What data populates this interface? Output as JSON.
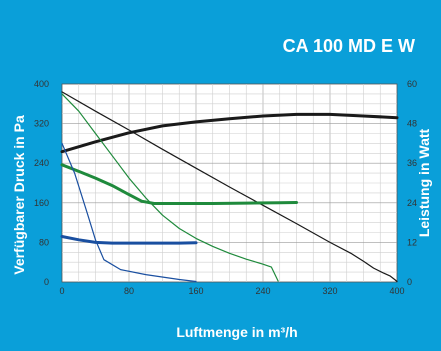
{
  "chart_data": {
    "type": "line",
    "title": "CA 100 MD E W",
    "xlabel": "Luftmenge in m³/h",
    "ylabel": "Verfügbarer Druck in Pa",
    "y2label": "Leistung in Watt",
    "xlim": [
      0,
      400
    ],
    "ylim": [
      0,
      400
    ],
    "y2lim": [
      0,
      60
    ],
    "xticks": [
      "0",
      "80",
      "160",
      "240",
      "320",
      "400"
    ],
    "yticks": [
      "0",
      "80",
      "160",
      "240",
      "320",
      "400"
    ],
    "y2ticks": [
      "0",
      "12",
      "24",
      "36",
      "48",
      "60"
    ],
    "grid": true,
    "series": [
      {
        "color": "#1a1a1a",
        "width": 1.2,
        "axis": "left",
        "points": [
          [
            0,
            384
          ],
          [
            40,
            345
          ],
          [
            80,
            307
          ],
          [
            120,
            268
          ],
          [
            160,
            230
          ],
          [
            200,
            192
          ],
          [
            240,
            155
          ],
          [
            280,
            118
          ],
          [
            320,
            80
          ],
          [
            345,
            58
          ],
          [
            360,
            42
          ],
          [
            372,
            28
          ],
          [
            384,
            18
          ],
          [
            392,
            12
          ],
          [
            398,
            4
          ],
          [
            400,
            1
          ]
        ]
      },
      {
        "color": "#1a1a1a",
        "width": 3,
        "axis": "right",
        "points": [
          [
            0,
            39.5
          ],
          [
            40,
            42.5
          ],
          [
            80,
            45.2
          ],
          [
            120,
            47.3
          ],
          [
            160,
            48.5
          ],
          [
            200,
            49.5
          ],
          [
            240,
            50.3
          ],
          [
            280,
            50.8
          ],
          [
            320,
            50.8
          ],
          [
            360,
            50.3
          ],
          [
            400,
            49.8
          ]
        ]
      },
      {
        "color": "#1f8a3c",
        "width": 1.2,
        "axis": "left",
        "points": [
          [
            0,
            380
          ],
          [
            20,
            345
          ],
          [
            40,
            300
          ],
          [
            60,
            255
          ],
          [
            80,
            210
          ],
          [
            100,
            170
          ],
          [
            120,
            135
          ],
          [
            140,
            108
          ],
          [
            160,
            88
          ],
          [
            180,
            72
          ],
          [
            200,
            58
          ],
          [
            220,
            46
          ],
          [
            240,
            36
          ],
          [
            250,
            30
          ],
          [
            258,
            2
          ]
        ]
      },
      {
        "color": "#1f8a3c",
        "width": 3,
        "axis": "right",
        "points": [
          [
            0,
            35.5
          ],
          [
            20,
            33.5
          ],
          [
            40,
            31.5
          ],
          [
            60,
            29.2
          ],
          [
            80,
            26.5
          ],
          [
            95,
            24.5
          ],
          [
            110,
            23.8
          ],
          [
            140,
            23.8
          ],
          [
            180,
            23.8
          ],
          [
            220,
            23.9
          ],
          [
            260,
            24
          ],
          [
            280,
            24.1
          ]
        ]
      },
      {
        "color": "#1a4fa0",
        "width": 1.2,
        "axis": "left",
        "points": [
          [
            0,
            280
          ],
          [
            15,
            220
          ],
          [
            30,
            140
          ],
          [
            40,
            85
          ],
          [
            50,
            45
          ],
          [
            70,
            25
          ],
          [
            100,
            15
          ],
          [
            140,
            5
          ],
          [
            160,
            1
          ]
        ]
      },
      {
        "color": "#1a4fa0",
        "width": 3,
        "axis": "right",
        "points": [
          [
            0,
            13.8
          ],
          [
            20,
            12.8
          ],
          [
            40,
            12
          ],
          [
            60,
            11.8
          ],
          [
            100,
            11.8
          ],
          [
            140,
            11.8
          ],
          [
            160,
            11.9
          ]
        ]
      }
    ]
  }
}
